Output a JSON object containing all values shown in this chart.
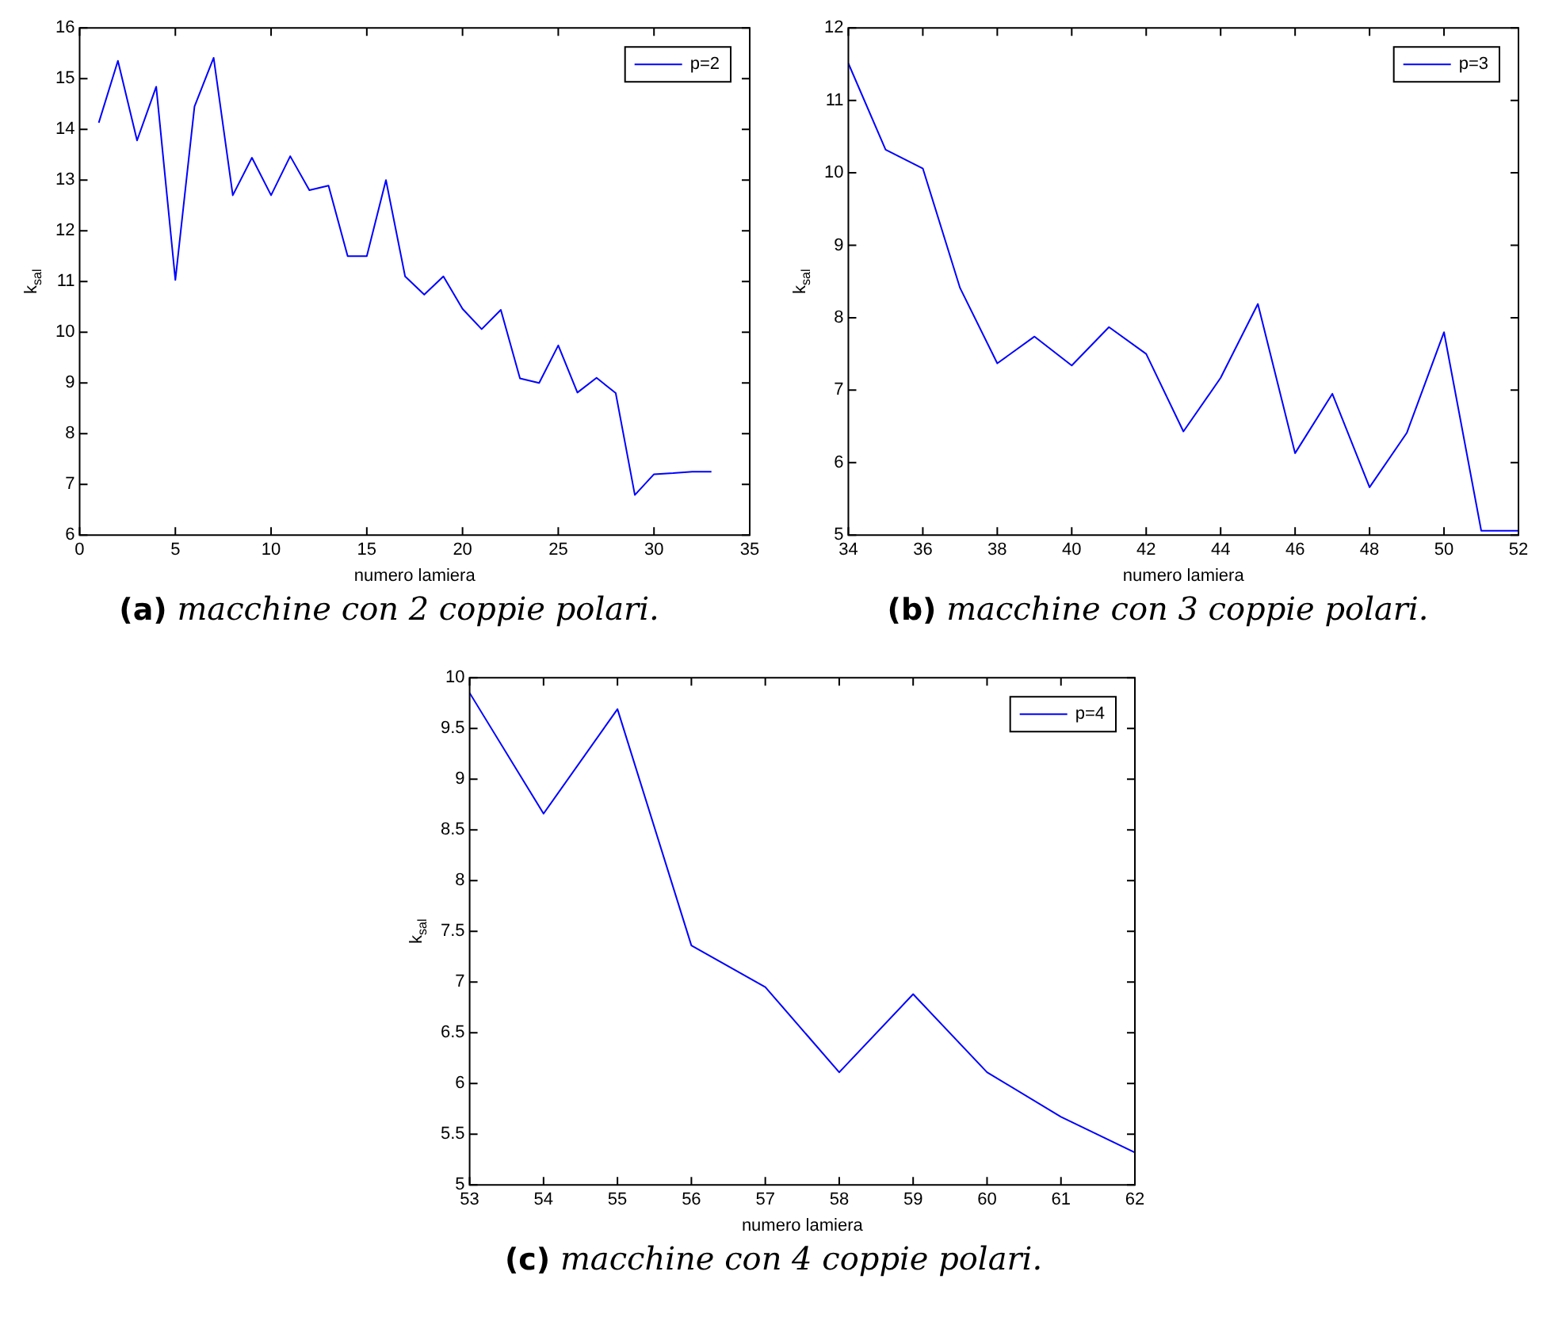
{
  "chart_data": [
    {
      "type": "line",
      "xlabel": "numero lamiera",
      "ylabel": "k$_{sal}$",
      "xlim": [
        0,
        35
      ],
      "xticks": [
        0,
        5,
        10,
        15,
        20,
        25,
        30,
        35
      ],
      "ylim": [
        6,
        16
      ],
      "yticks": [
        6,
        7,
        8,
        9,
        10,
        11,
        12,
        13,
        14,
        15,
        16
      ],
      "legend": "top right",
      "grid": false,
      "annotations": [
        "(a) macchine con 2 coppie polari."
      ],
      "x": [
        1,
        2,
        3,
        4,
        5,
        6,
        7,
        8,
        9,
        10,
        11,
        12,
        13,
        14,
        15,
        16,
        17,
        18,
        19,
        20,
        21,
        22,
        23,
        24,
        25,
        26,
        27,
        28,
        29,
        30,
        31,
        32,
        33
      ],
      "series": [
        {
          "name": "p=2",
          "color": "#0000ff",
          "values": [
            14.13,
            15.35,
            13.78,
            14.84,
            11.03,
            14.45,
            15.41,
            12.7,
            13.44,
            12.7,
            13.47,
            12.8,
            12.89,
            11.5,
            11.5,
            13.0,
            11.1,
            10.74,
            11.1,
            10.46,
            10.06,
            10.44,
            9.09,
            9.0,
            9.74,
            8.81,
            9.1,
            8.8,
            6.79,
            7.2,
            7.22,
            7.25,
            7.25
          ]
        }
      ]
    },
    {
      "type": "line",
      "xlabel": "numero lamiera",
      "ylabel": "k$_{sal}$",
      "xlim": [
        34,
        52
      ],
      "xticks": [
        34,
        36,
        38,
        40,
        42,
        44,
        46,
        48,
        50,
        52
      ],
      "ylim": [
        5,
        12
      ],
      "yticks": [
        5,
        6,
        7,
        8,
        9,
        10,
        11,
        12
      ],
      "legend": "top right",
      "grid": false,
      "annotations": [
        "(b) macchine con 3 coppie polari."
      ],
      "x": [
        34,
        35,
        36,
        37,
        38,
        39,
        40,
        41,
        42,
        43,
        44,
        45,
        46,
        47,
        48,
        49,
        50,
        51,
        52
      ],
      "series": [
        {
          "name": "p=3",
          "color": "#0000ff",
          "values": [
            11.51,
            10.32,
            10.06,
            8.41,
            7.37,
            7.74,
            7.34,
            7.87,
            7.5,
            6.43,
            7.17,
            8.19,
            6.13,
            6.95,
            5.66,
            6.41,
            7.8,
            5.06,
            5.06
          ]
        }
      ]
    },
    {
      "type": "line",
      "xlabel": "numero lamiera",
      "ylabel": "k$_{sal}$",
      "xlim": [
        53,
        62
      ],
      "xticks": [
        53,
        54,
        55,
        56,
        57,
        58,
        59,
        60,
        61,
        62
      ],
      "ylim": [
        5,
        10
      ],
      "yticks": [
        5,
        5.5,
        6,
        6.5,
        7,
        7.5,
        8,
        8.5,
        9,
        9.5,
        10
      ],
      "legend": "top right",
      "grid": false,
      "annotations": [
        "(c) macchine con 4 coppie polari."
      ],
      "x": [
        53,
        54,
        55,
        56,
        57,
        58,
        59,
        60,
        61,
        62
      ],
      "series": [
        {
          "name": "p=4",
          "color": "#0000ff",
          "values": [
            9.85,
            8.66,
            9.69,
            7.36,
            6.95,
            6.11,
            6.88,
            6.11,
            5.67,
            5.32
          ]
        }
      ]
    }
  ]
}
